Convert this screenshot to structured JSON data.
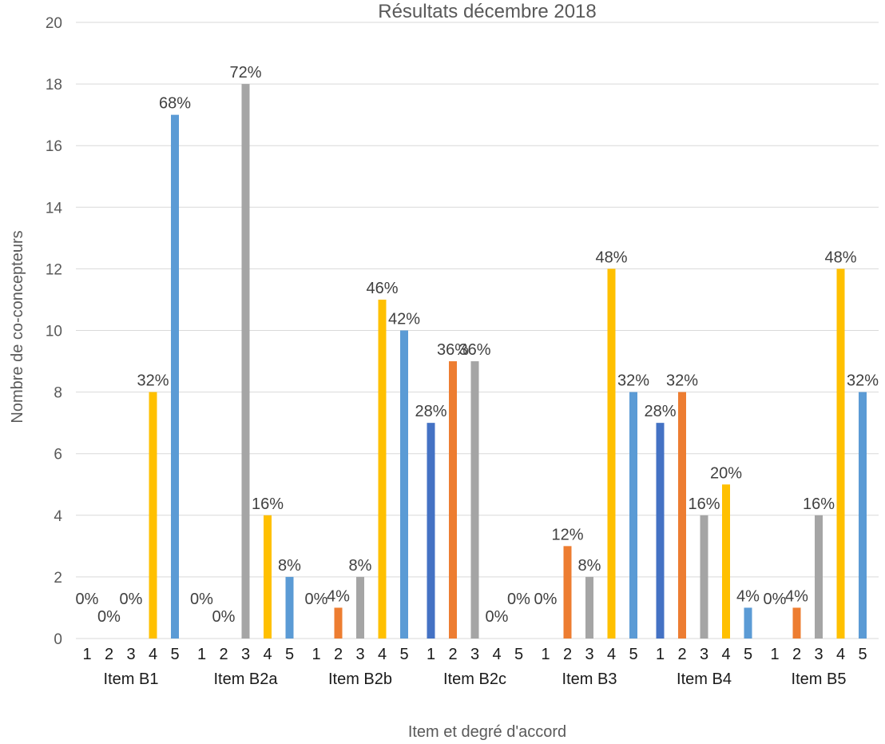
{
  "chart_data": {
    "type": "bar",
    "title": "Résultats décembre 2018",
    "xlabel": "Item et degré d'accord",
    "ylabel": "Nombre de co-concepteurs",
    "ylim": [
      0,
      20
    ],
    "yticks": [
      0,
      2,
      4,
      6,
      8,
      10,
      12,
      14,
      16,
      18,
      20
    ],
    "grid": true,
    "degree_labels": [
      "1",
      "2",
      "3",
      "4",
      "5"
    ],
    "colors": {
      "1": "#4472C4",
      "2": "#ED7D31",
      "3": "#A5A5A5",
      "4": "#FFC000",
      "5": "#5B9BD5"
    },
    "groups": [
      {
        "name": "Item B1",
        "values": [
          0,
          0,
          0,
          8,
          17
        ],
        "labels": [
          "0%",
          "0%",
          "0%",
          "32%",
          "68%"
        ]
      },
      {
        "name": "Item B2a",
        "values": [
          0,
          0,
          18,
          4,
          2
        ],
        "labels": [
          "0%",
          "0%",
          "72%",
          "16%",
          "8%"
        ]
      },
      {
        "name": "Item B2b",
        "values": [
          0,
          1,
          2,
          11,
          10
        ],
        "labels": [
          "0%",
          "4%",
          "8%",
          "46%",
          "42%"
        ]
      },
      {
        "name": "Item B2c",
        "values": [
          7,
          9,
          9,
          0,
          0
        ],
        "labels": [
          "28%",
          "36%",
          "36%",
          "0%",
          "0%"
        ]
      },
      {
        "name": "Item B3",
        "values": [
          0,
          3,
          2,
          12,
          8
        ],
        "labels": [
          "0%",
          "12%",
          "8%",
          "48%",
          "32%"
        ]
      },
      {
        "name": "Item B4",
        "values": [
          7,
          8,
          4,
          5,
          1
        ],
        "labels": [
          "28%",
          "32%",
          "16%",
          "20%",
          "4%"
        ]
      },
      {
        "name": "Item B5",
        "values": [
          0,
          1,
          4,
          12,
          8
        ],
        "labels": [
          "0%",
          "4%",
          "16%",
          "48%",
          "32%"
        ]
      }
    ]
  }
}
